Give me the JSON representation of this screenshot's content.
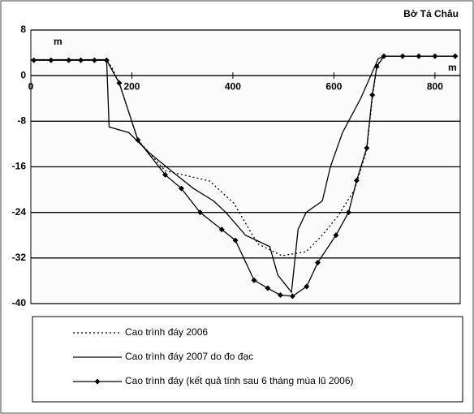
{
  "chart_data": {
    "type": "line",
    "title": "Bờ Tả Châu",
    "ylabel": "m",
    "xlabel": "m",
    "xlim": [
      0,
      850
    ],
    "ylim": [
      -40,
      8
    ],
    "xticks": [
      0,
      200,
      400,
      600,
      800
    ],
    "yticks": [
      8,
      0,
      -8,
      -16,
      -24,
      -32,
      -40
    ],
    "grid": true,
    "legend": "bottom",
    "series": [
      {
        "name": "Cao trình đáy 2006",
        "color": "#000000",
        "dash": "dotted",
        "x": [
          0,
          40,
          75,
          99,
          126,
          150,
          160,
          175,
          212,
          266,
          306,
          354,
          402,
          449,
          497,
          545,
          577,
          609,
          641,
          665,
          676,
          685,
          699,
          736,
          768,
          800,
          840
        ],
        "values": [
          2.7,
          2.7,
          2.7,
          2.7,
          2.7,
          2.7,
          1.5,
          -1.3,
          -11.3,
          -16.7,
          -17.5,
          -18.5,
          -22.4,
          -29.5,
          -31.6,
          -30.9,
          -28,
          -24.5,
          -20,
          -13,
          -4,
          1.8,
          3.4,
          3.4,
          3.4,
          3.4,
          3.4
        ]
      },
      {
        "name": "Cao trình đáy 2007 do đo đạc",
        "color": "#000000",
        "dash": "solid",
        "x": [
          0,
          40,
          75,
          99,
          126,
          150,
          155,
          194,
          234,
          282,
          322,
          362,
          386,
          425,
          449,
          473,
          489,
          516,
          529,
          545,
          577,
          593,
          617,
          653,
          673,
          688,
          699,
          736,
          768,
          800,
          840
        ],
        "values": [
          2.8,
          2.8,
          2.8,
          2.8,
          2.8,
          2.8,
          -9,
          -10,
          -13.5,
          -17,
          -19.8,
          -22,
          -24,
          -28,
          -29,
          -30,
          -35,
          -38,
          -27,
          -24,
          -22,
          -16,
          -10,
          -4,
          0,
          3,
          3.4,
          3.4,
          3.4,
          3.4,
          3.4
        ]
      },
      {
        "name": "Cao trình đáy (kết quả tính sau 6 tháng mùa lũ 2006)",
        "color": "#000000",
        "dash": "solid",
        "marker": "diamond",
        "x": [
          6,
          40,
          75,
          99,
          126,
          150,
          175,
          212,
          266,
          298,
          335,
          378,
          405,
          442,
          469,
          494,
          518,
          546,
          568,
          604,
          629,
          645,
          665,
          676,
          685,
          699,
          736,
          768,
          800,
          840
        ],
        "values": [
          2.7,
          2.7,
          2.7,
          2.7,
          2.7,
          2.7,
          -1.3,
          -11.3,
          -17.4,
          -19.8,
          -24,
          -27,
          -28.9,
          -35.9,
          -37.3,
          -38.5,
          -38.7,
          -37,
          -32.8,
          -28,
          -24,
          -18.4,
          -12.7,
          -3.4,
          1.6,
          3.4,
          3.4,
          3.4,
          3.4,
          3.4
        ]
      }
    ]
  }
}
